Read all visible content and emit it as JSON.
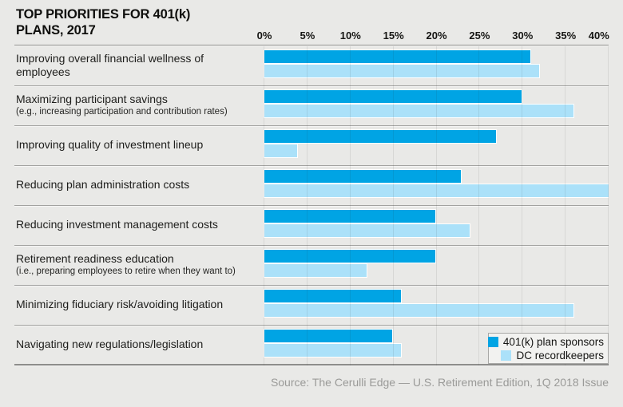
{
  "title": {
    "line1": "TOP PRIORITIES FOR 401(k)",
    "line2": "PLANS, 2017"
  },
  "source_note": "Source: The Cerulli Edge — U.S. Retirement Edition, 1Q 2018 Issue",
  "colors": {
    "sponsors": "#00A4E4",
    "recordkeepers": "#ABE1F9",
    "background": "#E9E9E7",
    "separator": "#A2A2A0",
    "source_text": "#9A9A98"
  },
  "chart_data": {
    "type": "bar",
    "orientation": "horizontal",
    "title": "Top Priorities for 401(k) Plans, 2017",
    "categories": [
      {
        "label": "Improving overall financial wellness of employees",
        "sublabel": ""
      },
      {
        "label": "Maximizing participant savings",
        "sublabel": "(e.g., increasing participation and contribution rates)"
      },
      {
        "label": "Improving quality of investment lineup",
        "sublabel": ""
      },
      {
        "label": "Reducing plan administration costs",
        "sublabel": ""
      },
      {
        "label": "Reducing investment management costs",
        "sublabel": ""
      },
      {
        "label": "Retirement readiness education",
        "sublabel": "(i.e., preparing employees to retire when they want to)"
      },
      {
        "label": "Minimizing fiduciary risk/avoiding litigation",
        "sublabel": ""
      },
      {
        "label": "Navigating new regulations/legislation",
        "sublabel": ""
      }
    ],
    "series": [
      {
        "name": "401(k) plan sponsors",
        "color": "#00A4E4",
        "values": [
          31,
          30,
          27,
          23,
          20,
          20,
          16,
          15
        ]
      },
      {
        "name": "DC recordkeepers",
        "color": "#ABE1F9",
        "values": [
          32,
          36,
          4,
          41,
          24,
          12,
          36,
          16
        ]
      }
    ],
    "x_ticks": [
      "0%",
      "5%",
      "10%",
      "15%",
      "20%",
      "25%",
      "30%",
      "35%",
      "40%"
    ],
    "xlim": [
      0,
      40
    ],
    "grid": "vertical",
    "legend_position": "bottom-right"
  }
}
